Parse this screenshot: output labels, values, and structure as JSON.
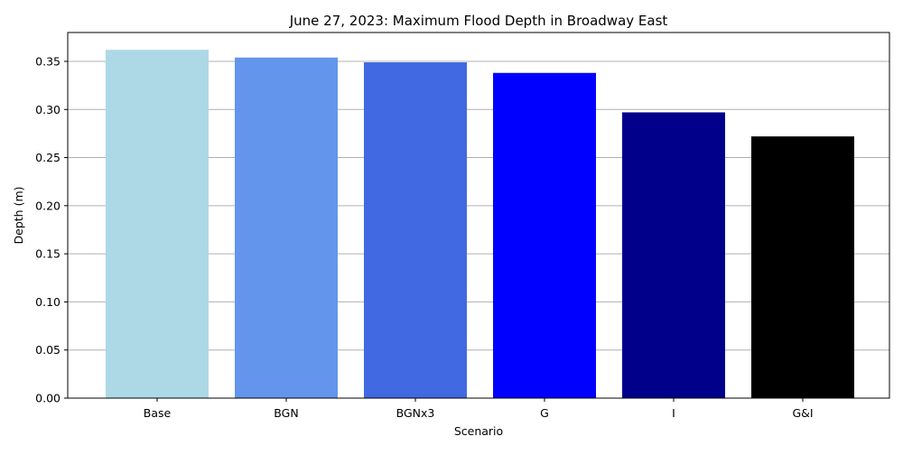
{
  "chart_data": {
    "type": "bar",
    "title": "June 27, 2023: Maximum Flood Depth in Broadway East",
    "xlabel": "Scenario",
    "ylabel": "Depth (m)",
    "categories": [
      "Base",
      "BGN",
      "BGNx3",
      "G",
      "I",
      "G&I"
    ],
    "values": [
      0.362,
      0.354,
      0.349,
      0.338,
      0.297,
      0.272
    ],
    "colors": [
      "#add8e6",
      "#6495ed",
      "#4169e1",
      "#0000ff",
      "#00008b",
      "#000000"
    ],
    "ylim": [
      0,
      0.38
    ],
    "yticks": [
      "0.00",
      "0.05",
      "0.10",
      "0.15",
      "0.20",
      "0.25",
      "0.30",
      "0.35"
    ],
    "grid": "horizontal",
    "legend": "none"
  }
}
